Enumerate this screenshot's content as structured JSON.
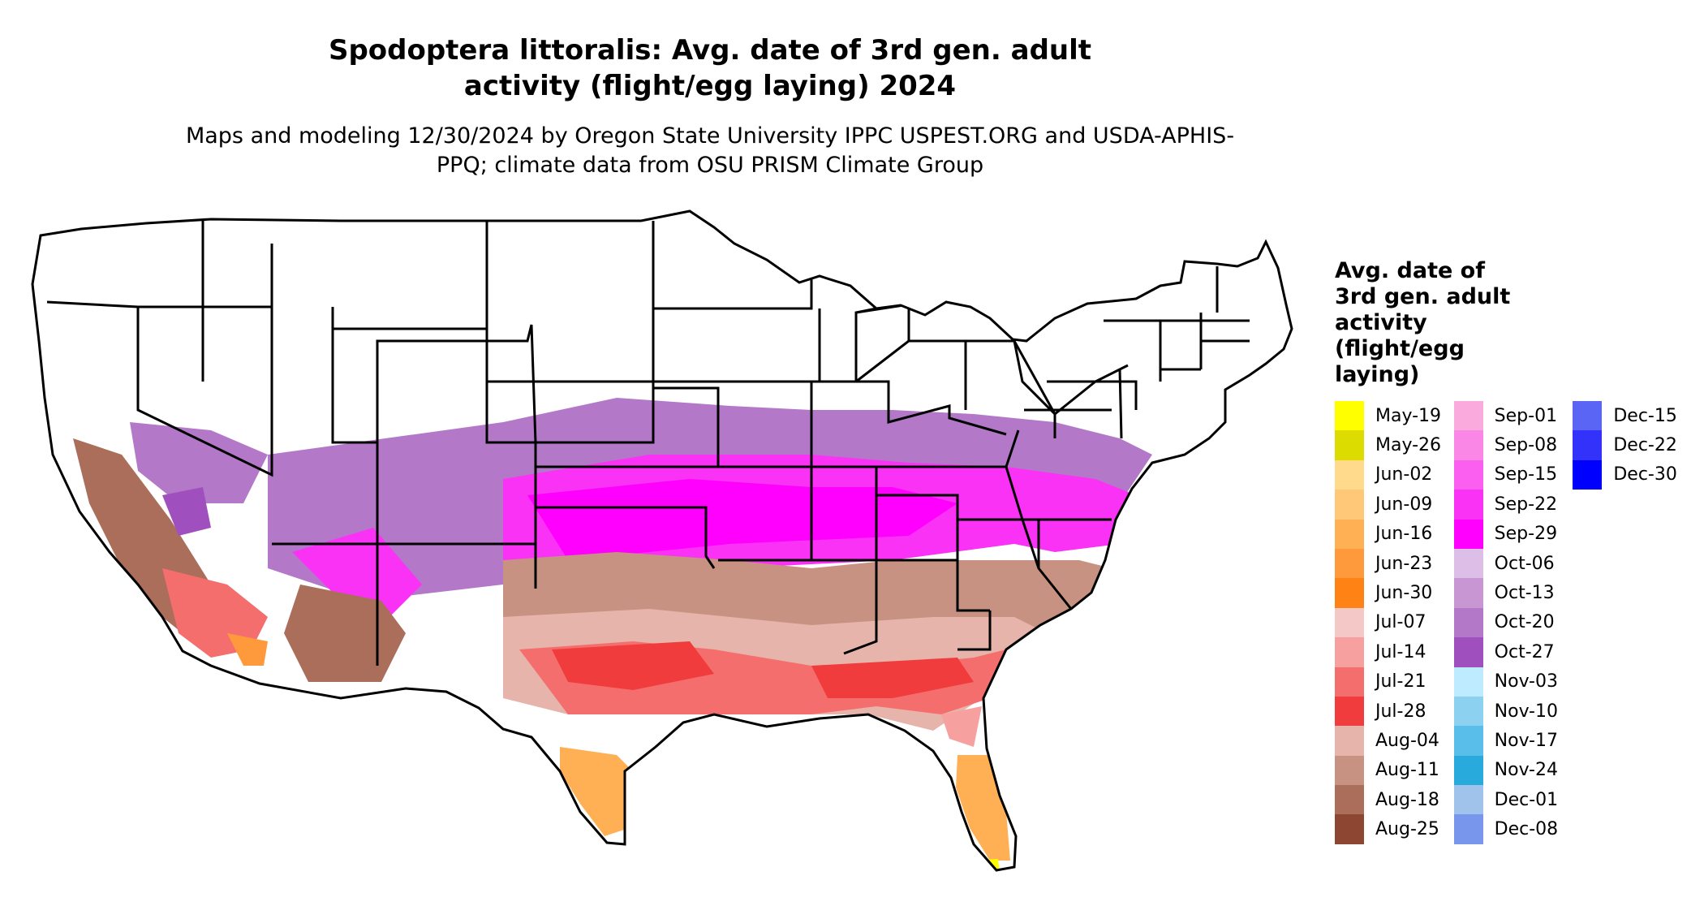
{
  "title": "Spodoptera littoralis: Avg. date of 3rd gen. adult activity (flight/egg laying) 2024",
  "subtitle": "Maps and modeling 12/30/2024 by Oregon State University IPPC USPEST.ORG and USDA-APHIS-PPQ; climate data from OSU PRISM Climate Group",
  "legend": {
    "title": "Avg. date of 3rd gen. adult activity (flight/egg laying)",
    "columns": [
      [
        {
          "label": "May-19",
          "color": "#ffff00"
        },
        {
          "label": "May-26",
          "color": "#dcdc00"
        },
        {
          "label": "Jun-02",
          "color": "#ffd98c"
        },
        {
          "label": "Jun-09",
          "color": "#ffc878"
        },
        {
          "label": "Jun-16",
          "color": "#ffb055"
        },
        {
          "label": "Jun-23",
          "color": "#ff9a3c"
        },
        {
          "label": "Jun-30",
          "color": "#ff8214"
        },
        {
          "label": "Jul-07",
          "color": "#f5c8c8"
        },
        {
          "label": "Jul-14",
          "color": "#f7a0a0"
        },
        {
          "label": "Jul-21",
          "color": "#f56e6e"
        },
        {
          "label": "Jul-28",
          "color": "#f03c3c"
        },
        {
          "label": "Aug-04",
          "color": "#e6b4aa"
        },
        {
          "label": "Aug-11",
          "color": "#c89282"
        },
        {
          "label": "Aug-18",
          "color": "#aa6e5a"
        },
        {
          "label": "Aug-25",
          "color": "#8c4632"
        }
      ],
      [
        {
          "label": "Sep-01",
          "color": "#faaadc"
        },
        {
          "label": "Sep-08",
          "color": "#fa87e6"
        },
        {
          "label": "Sep-15",
          "color": "#fa5ff0"
        },
        {
          "label": "Sep-22",
          "color": "#fa32f5"
        },
        {
          "label": "Sep-29",
          "color": "#ff00ff"
        },
        {
          "label": "Oct-06",
          "color": "#dcbee6"
        },
        {
          "label": "Oct-13",
          "color": "#c896d2"
        },
        {
          "label": "Oct-20",
          "color": "#b478c8"
        },
        {
          "label": "Oct-27",
          "color": "#a050be"
        },
        {
          "label": "Nov-03",
          "color": "#beebff"
        },
        {
          "label": "Nov-10",
          "color": "#8cd2f0"
        },
        {
          "label": "Nov-17",
          "color": "#5abeeb"
        },
        {
          "label": "Nov-24",
          "color": "#28aadc"
        },
        {
          "label": "Dec-01",
          "color": "#a0c3eb"
        },
        {
          "label": "Dec-08",
          "color": "#7896eb"
        }
      ],
      [
        {
          "label": "Dec-15",
          "color": "#5a64f5"
        },
        {
          "label": "Dec-22",
          "color": "#3232fa"
        },
        {
          "label": "Dec-30",
          "color": "#0000ff"
        }
      ]
    ]
  }
}
